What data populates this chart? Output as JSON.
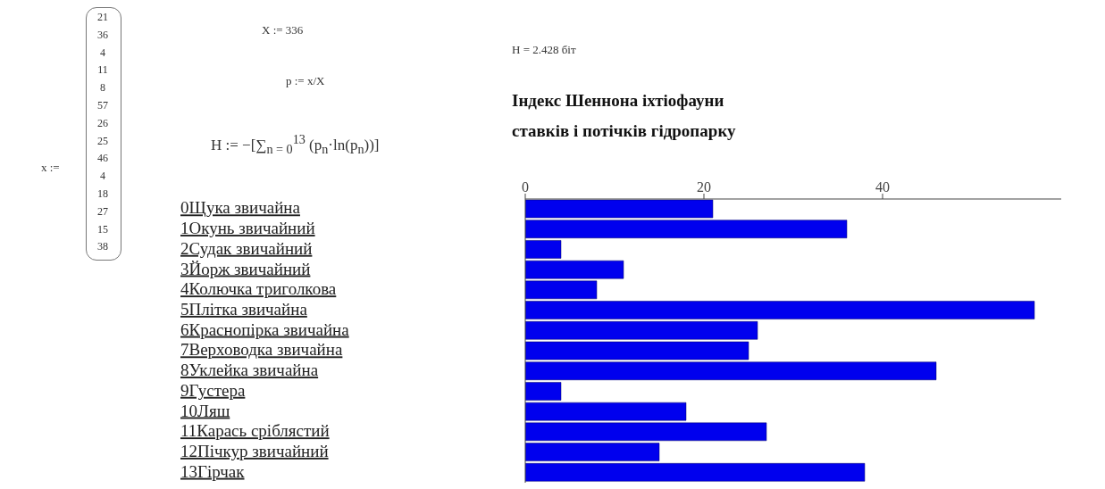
{
  "chart_data": {
    "type": "bar",
    "orientation": "horizontal",
    "title": "Індекс Шеннона іхтіофауни ставків і потічків гідропарку",
    "categories": [
      "0Щука звичайна",
      "1Окунь звичайний",
      "2Судак звичайний",
      "3Йорж звичайний",
      "4Колючка триголкова",
      "5Плітка звичайна",
      "6Краснопірка звичайна",
      "7Верховодка звичайна",
      "8Уклейка звичайна",
      "9Густера",
      "10Ляш",
      "11Карась сріблястий",
      "12Пічкур звичайний",
      "13Гірчак"
    ],
    "series": [
      {
        "color": "#0000ee",
        "axis": "x2",
        "values": [
          21,
          36,
          4,
          11,
          8,
          57,
          26,
          25,
          46,
          4,
          18,
          27,
          15,
          38
        ]
      }
    ],
    "x2lim": [
      0,
      60
    ],
    "x2ticks": [
      0,
      20,
      40
    ],
    "grid": false,
    "legend": false,
    "annotations": [
      "x :=",
      "21\n36\n4\n11\n8\n57\n26\n25\n46\n4\n18\n27\n15\n38",
      "X := 336",
      "p := x/X",
      "H := −[∑$_{n = 0}$$^{13}$ (p$_{n}$·ln(p$_{n}$))]",
      "H = 2.428 біт"
    ]
  }
}
